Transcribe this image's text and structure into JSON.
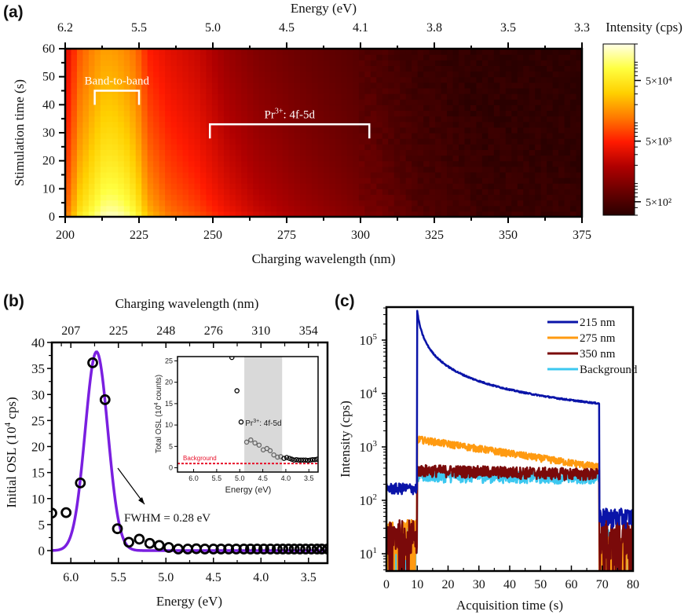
{
  "figure": {
    "panels": [
      "(a)",
      "(b)",
      "(c)"
    ]
  },
  "chart_data": [
    {
      "id": "a",
      "type": "heatmap",
      "panel_label": "(a)",
      "xlabel": "Charging wavelength (nm)",
      "ylabel": "Stimulation time (s)",
      "top_xlabel": "Energy (eV)",
      "xlim": [
        200,
        375
      ],
      "ylim": [
        0,
        60
      ],
      "xticks": [
        200,
        225,
        250,
        275,
        300,
        325,
        350,
        375
      ],
      "yticks": [
        0,
        10,
        20,
        30,
        40,
        50,
        60
      ],
      "top_ticks": [
        {
          "label": "6.2",
          "wavelength": 200
        },
        {
          "label": "5.5",
          "wavelength": 225
        },
        {
          "label": "5.0",
          "wavelength": 250
        },
        {
          "label": "4.5",
          "wavelength": 275
        },
        {
          "label": "4.1",
          "wavelength": 300
        },
        {
          "label": "3.8",
          "wavelength": 325
        },
        {
          "label": "3.5",
          "wavelength": 350
        },
        {
          "label": "3.3",
          "wavelength": 375
        }
      ],
      "colorbar": {
        "title": "Intensity (cps)",
        "scale": "log",
        "range": [
          300,
          200000
        ],
        "ticks": [
          {
            "label": "5×10²",
            "value": 500
          },
          {
            "label": "5×10³",
            "value": 5000
          },
          {
            "label": "5×10⁴",
            "value": 50000
          }
        ],
        "colormap": [
          "#2a0000",
          "#6b0000",
          "#b00000",
          "#ff1a00",
          "#ff7a00",
          "#ffd000",
          "#ffff40",
          "#ffffe8"
        ]
      },
      "annotations": [
        {
          "text": "Band-to-band",
          "range_nm": [
            210,
            225
          ],
          "time": 45
        },
        {
          "text_main": "Pr",
          "text_sup": "3+",
          "text_rest": ": 4f-5d",
          "range_nm": [
            249,
            303
          ],
          "time": 33
        }
      ],
      "intensity_profile": {
        "wavelength": [
          200,
          205,
          210,
          213,
          216,
          220,
          224,
          228,
          235,
          245,
          255,
          265,
          280,
          300,
          320,
          340,
          375
        ],
        "initial_cps": [
          12000,
          60000,
          120000,
          180000,
          200000,
          160000,
          90000,
          30000,
          14000,
          9000,
          5000,
          3000,
          1800,
          1100,
          600,
          420,
          380
        ],
        "final_cps": [
          3000,
          9000,
          15000,
          18000,
          18000,
          15000,
          11000,
          5000,
          3500,
          2500,
          1400,
          1000,
          750,
          550,
          380,
          330,
          320
        ]
      }
    },
    {
      "id": "b",
      "type": "scatter",
      "panel_label": "(b)",
      "xlabel": "Energy (eV)",
      "ylabel": "Initial OSL (10⁴ cps)",
      "top_xlabel": "Charging wavelength (nm)",
      "xlim": [
        6.2,
        3.3
      ],
      "ylim": [
        -2.5,
        40
      ],
      "xticks": [
        6.0,
        5.5,
        5.0,
        4.5,
        4.0,
        3.5
      ],
      "xtick_labels": [
        "6.0",
        "5.5",
        "5.0",
        "4.5",
        "4.0",
        "3.5"
      ],
      "yticks": [
        0,
        5,
        10,
        15,
        20,
        25,
        30,
        35,
        40
      ],
      "top_ticks": [
        {
          "label": "207",
          "energy": 6.0
        },
        {
          "label": "225",
          "energy": 5.5
        },
        {
          "label": "248",
          "energy": 5.0
        },
        {
          "label": "276",
          "energy": 4.5
        },
        {
          "label": "310",
          "energy": 4.0
        },
        {
          "label": "354",
          "energy": 3.5
        }
      ],
      "series": [
        {
          "name": "Initial OSL",
          "marker": "open-circle",
          "color": "#000000",
          "x": [
            6.2,
            6.05,
            5.9,
            5.77,
            5.64,
            5.51,
            5.39,
            5.28,
            5.17,
            5.07,
            4.97,
            4.87,
            4.77,
            4.68,
            4.59,
            4.5,
            4.42,
            4.34,
            4.26,
            4.18,
            4.11,
            4.04,
            3.97,
            3.9,
            3.83,
            3.77,
            3.71,
            3.65,
            3.59,
            3.53,
            3.47,
            3.41,
            3.36,
            3.3
          ],
          "y": [
            7.2,
            7.3,
            13.0,
            36.1,
            29.0,
            4.2,
            1.6,
            2.2,
            1.4,
            1.0,
            0.6,
            0.3,
            0.3,
            0.35,
            0.3,
            0.3,
            0.3,
            0.3,
            0.3,
            0.3,
            0.3,
            0.3,
            0.3,
            0.3,
            0.3,
            0.3,
            0.3,
            0.3,
            0.3,
            0.3,
            0.3,
            0.3,
            0.3,
            0.3
          ]
        },
        {
          "name": "Gaussian fit",
          "type": "line",
          "color": "#7a1fe0",
          "center_eV": 5.73,
          "amplitude": 38.2,
          "fwhm_eV": 0.28
        }
      ],
      "annotations": [
        {
          "text": "FWHM = 0.28 eV"
        }
      ],
      "inset": {
        "type": "scatter",
        "xlabel": "Energy (eV)",
        "ylabel_main": "Total OSL (10",
        "ylabel_sup": "4",
        "ylabel_rest": " counts)",
        "xlim": [
          6.35,
          3.3
        ],
        "ylim": [
          -1,
          26
        ],
        "xticks": [
          6.0,
          5.5,
          5.0,
          4.5,
          4.0,
          3.5
        ],
        "xtick_labels": [
          "6.0",
          "5.5",
          "5.0",
          "4.5",
          "4.0",
          "3.5"
        ],
        "yticks": [
          0,
          5,
          10,
          15,
          20,
          25
        ],
        "shaded_region_eV": [
          4.9,
          4.08
        ],
        "shaded_label_main": "Pr",
        "shaded_label_sup": "3+",
        "shaded_label_rest": ": 4f-5d",
        "background_level": 1.0,
        "background_label": "Background",
        "background_color": "#e8102a",
        "x": [
          5.17,
          5.06,
          4.97,
          4.85,
          4.76,
          4.67,
          4.58,
          4.49,
          4.41,
          4.34,
          4.26,
          4.18,
          4.11,
          4.04,
          3.98,
          3.92,
          3.87,
          3.82,
          3.77,
          3.72,
          3.67,
          3.62,
          3.57,
          3.52,
          3.47,
          3.42,
          3.37,
          3.32
        ],
        "y": [
          25.8,
          18.0,
          10.7,
          6.0,
          6.5,
          5.8,
          5.3,
          4.2,
          4.5,
          4.0,
          3.0,
          2.5,
          2.6,
          2.2,
          2.4,
          2.2,
          2.0,
          1.8,
          1.9,
          1.8,
          1.8,
          1.8,
          1.8,
          1.7,
          1.8,
          1.9,
          1.9,
          2.0
        ]
      }
    },
    {
      "id": "c",
      "type": "line",
      "panel_label": "(c)",
      "xlabel": "Acquisition time (s)",
      "ylabel": "Intensity (cps)",
      "xlim": [
        0,
        80
      ],
      "ylim_log": [
        5,
        400000
      ],
      "yscale": "log",
      "xticks": [
        0,
        10,
        20,
        30,
        40,
        50,
        60,
        70,
        80
      ],
      "yticks": [
        {
          "value": 10,
          "base": "10",
          "exp": "1"
        },
        {
          "value": 100,
          "base": "10",
          "exp": "2"
        },
        {
          "value": 1000,
          "base": "10",
          "exp": "3"
        },
        {
          "value": 10000,
          "base": "10",
          "exp": "4"
        },
        {
          "value": 100000,
          "base": "10",
          "exp": "5"
        }
      ],
      "legend_position": "top-right",
      "series": [
        {
          "name": "215 nm",
          "color": "#0a14a8",
          "pre": 160,
          "peak": 350000,
          "end": 6500,
          "post": 50,
          "decay": "hyperbolic"
        },
        {
          "name": "275 nm",
          "color": "#ff9a10",
          "pre": 20,
          "peak": 1400,
          "end": 420,
          "post": 10,
          "decay": "linear-log"
        },
        {
          "name": "350 nm",
          "color": "#7a0a0a",
          "pre": 20,
          "peak": 380,
          "end": 320,
          "post": 20,
          "decay": "flat"
        },
        {
          "name": "Background",
          "color": "#3cc8f0",
          "pre": 15,
          "peak": 300,
          "end": 280,
          "post": 15,
          "decay": "flat"
        }
      ],
      "light_on_interval_s": [
        10,
        69
      ]
    }
  ]
}
